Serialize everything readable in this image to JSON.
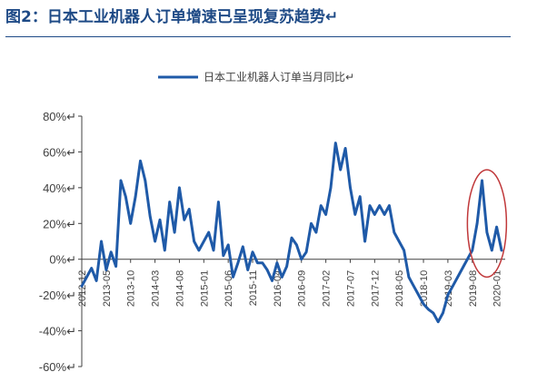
{
  "figure": {
    "title": "图2：日本工业机器人订单增速已呈现复苏趋势↵"
  },
  "colors": {
    "title": "#1e4a86",
    "series": "#1f5aa8",
    "highlight": "#c0383a",
    "axis": "#404040"
  },
  "chart_data": {
    "type": "line",
    "legend_position": "top-center",
    "grid": false,
    "ylim": [
      -60,
      80
    ],
    "y_ticks": [
      {
        "value": 80,
        "label": "80%↵"
      },
      {
        "value": 60,
        "label": "60%↵"
      },
      {
        "value": 40,
        "label": "40%↵"
      },
      {
        "value": 20,
        "label": "20%↵"
      },
      {
        "value": 0,
        "label": "0%↵"
      },
      {
        "value": -20,
        "label": "-20%↵"
      },
      {
        "value": -40,
        "label": "-40%↵"
      },
      {
        "value": -60,
        "label": "-60%↵"
      }
    ],
    "x_ticks": [
      "2012-12",
      "2013-05",
      "2013-10",
      "2014-03",
      "2014-08",
      "2015-01",
      "2015-06",
      "2015-11",
      "2016-04",
      "2016-09",
      "2017-02",
      "2017-07",
      "2017-12",
      "2018-05",
      "2018-10",
      "2019-03",
      "2019-08",
      "2020-01"
    ],
    "x_range": [
      "2012-12",
      "2020-02"
    ],
    "series": [
      {
        "name": "日本工业机器人订单当月同比↵",
        "points": [
          [
            "2012-12",
            -15
          ],
          [
            "2013-01",
            -10
          ],
          [
            "2013-02",
            -5
          ],
          [
            "2013-03",
            -12
          ],
          [
            "2013-04",
            10
          ],
          [
            "2013-05",
            -6
          ],
          [
            "2013-06",
            4
          ],
          [
            "2013-07",
            -4
          ],
          [
            "2013-08",
            44
          ],
          [
            "2013-09",
            35
          ],
          [
            "2013-10",
            20
          ],
          [
            "2013-11",
            35
          ],
          [
            "2013-12",
            55
          ],
          [
            "2014-01",
            44
          ],
          [
            "2014-02",
            24
          ],
          [
            "2014-03",
            10
          ],
          [
            "2014-04",
            22
          ],
          [
            "2014-05",
            5
          ],
          [
            "2014-06",
            32
          ],
          [
            "2014-07",
            15
          ],
          [
            "2014-08",
            40
          ],
          [
            "2014-09",
            22
          ],
          [
            "2014-10",
            28
          ],
          [
            "2014-11",
            10
          ],
          [
            "2014-12",
            5
          ],
          [
            "2015-01",
            10
          ],
          [
            "2015-02",
            15
          ],
          [
            "2015-03",
            5
          ],
          [
            "2015-04",
            32
          ],
          [
            "2015-05",
            2
          ],
          [
            "2015-06",
            8
          ],
          [
            "2015-07",
            -10
          ],
          [
            "2015-08",
            -2
          ],
          [
            "2015-09",
            7
          ],
          [
            "2015-10",
            -6
          ],
          [
            "2015-11",
            4
          ],
          [
            "2015-12",
            -2
          ],
          [
            "2016-01",
            -2
          ],
          [
            "2016-02",
            -6
          ],
          [
            "2016-03",
            -12
          ],
          [
            "2016-04",
            -2
          ],
          [
            "2016-05",
            -10
          ],
          [
            "2016-06",
            -4
          ],
          [
            "2016-07",
            12
          ],
          [
            "2016-08",
            8
          ],
          [
            "2016-09",
            0
          ],
          [
            "2016-10",
            4
          ],
          [
            "2016-11",
            20
          ],
          [
            "2016-12",
            15
          ],
          [
            "2017-01",
            30
          ],
          [
            "2017-02",
            25
          ],
          [
            "2017-03",
            40
          ],
          [
            "2017-04",
            65
          ],
          [
            "2017-05",
            50
          ],
          [
            "2017-06",
            62
          ],
          [
            "2017-07",
            40
          ],
          [
            "2017-08",
            25
          ],
          [
            "2017-09",
            35
          ],
          [
            "2017-10",
            10
          ],
          [
            "2017-11",
            30
          ],
          [
            "2017-12",
            25
          ],
          [
            "2018-01",
            30
          ],
          [
            "2018-02",
            25
          ],
          [
            "2018-03",
            30
          ],
          [
            "2018-04",
            15
          ],
          [
            "2018-05",
            10
          ],
          [
            "2018-06",
            5
          ],
          [
            "2018-07",
            -10
          ],
          [
            "2018-08",
            -15
          ],
          [
            "2018-09",
            -20
          ],
          [
            "2018-10",
            -25
          ],
          [
            "2018-11",
            -28
          ],
          [
            "2018-12",
            -30
          ],
          [
            "2019-01",
            -35
          ],
          [
            "2019-02",
            -30
          ],
          [
            "2019-03",
            -20
          ],
          [
            "2019-04",
            -15
          ],
          [
            "2019-05",
            -10
          ],
          [
            "2019-06",
            -5
          ],
          [
            "2019-07",
            0
          ],
          [
            "2019-08",
            5
          ],
          [
            "2019-09",
            20
          ],
          [
            "2019-10",
            44
          ],
          [
            "2019-11",
            15
          ],
          [
            "2019-12",
            5
          ],
          [
            "2020-01",
            18
          ],
          [
            "2020-02",
            5
          ]
        ]
      }
    ],
    "highlight_region": {
      "shape": "ellipse",
      "x_from": "2019-07",
      "x_to": "2020-03",
      "y_from": -10,
      "y_to": 50
    }
  }
}
